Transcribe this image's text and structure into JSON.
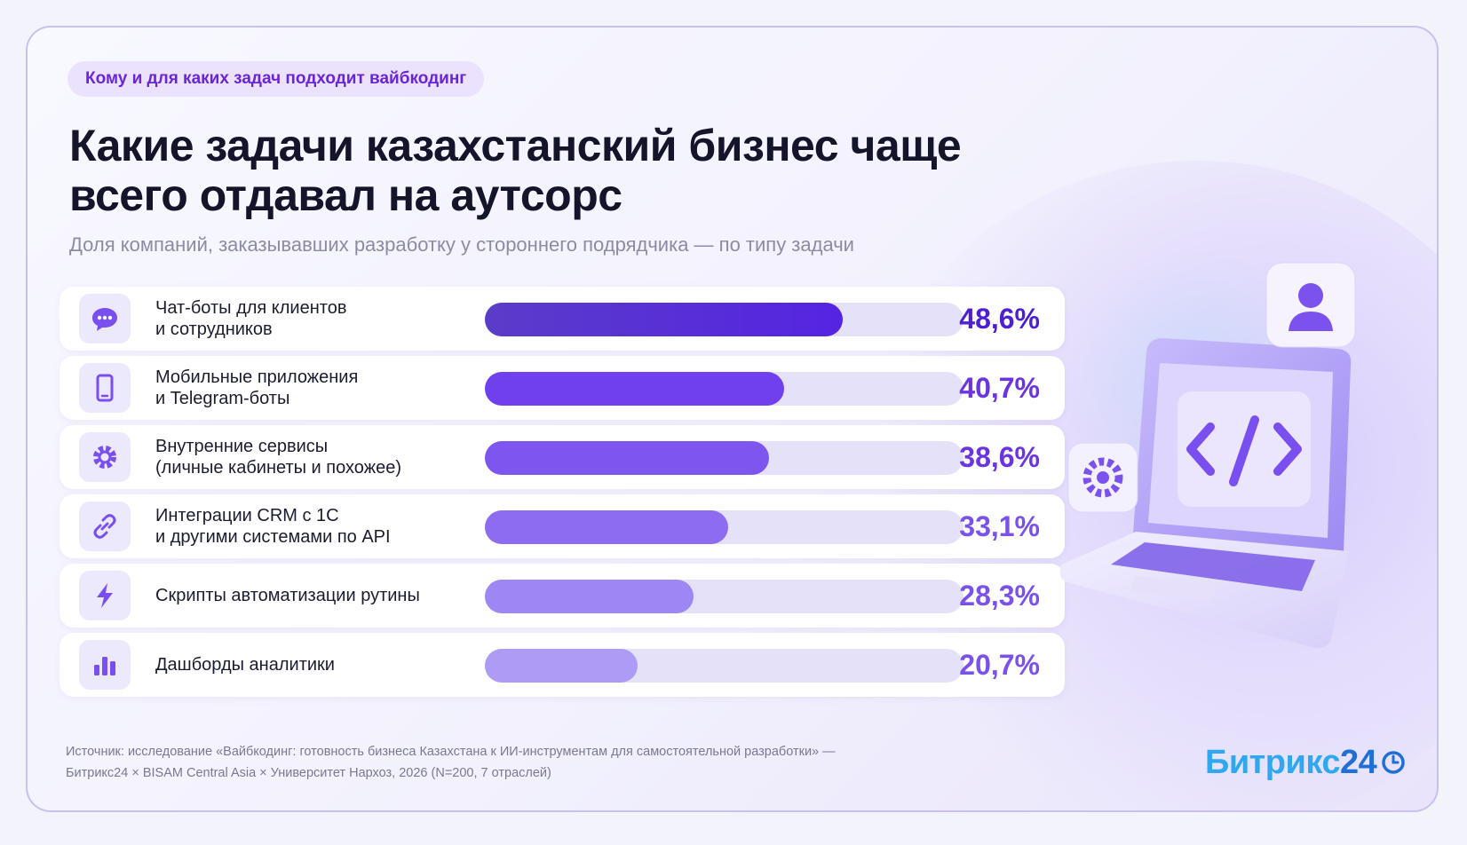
{
  "tag": "Кому и для каких задач подходит вайбкодинг",
  "title": "Какие задачи казахстанский бизнес чаще всего отдавал на аутсорс",
  "subtitle": "Доля компаний, заказывавших разработку у стороннего подрядчика — по типу задачи",
  "chart_data": {
    "type": "bar",
    "orientation": "horizontal",
    "title": "Какие задачи казахстанский бизнес чаще всего отдавал на аутсорс",
    "categories": [
      "Чат-боты для клиентов\nи сотрудников",
      "Мобильные приложения\nи Telegram-боты",
      "Внутренние сервисы\n(личные кабинеты и похожее)",
      "Интеграции CRM с 1С\nи другими системами по API",
      "Скрипты автоматизации рутины",
      "Дашборды аналитики"
    ],
    "values": [
      48.6,
      40.7,
      38.6,
      33.1,
      28.3,
      20.7
    ],
    "value_labels": [
      "48,6%",
      "40,7%",
      "38,6%",
      "33,1%",
      "28,3%",
      "20,7%"
    ],
    "icons": [
      "chat-bubble-icon",
      "smartphone-icon",
      "gear-icon",
      "link-icon",
      "lightning-icon",
      "bar-chart-icon"
    ],
    "xlim": [
      0,
      65
    ],
    "bar_colors": [
      "#5b2fd9",
      "#7140ee",
      "#7f55ef",
      "#8e6cf2",
      "#9f86f5",
      "#ae9bf6"
    ],
    "track_color": "#e5e1f8",
    "grid": false,
    "legend": "none"
  },
  "source": {
    "line1": "Источник: исследование «Вайбкодинг: готовность бизнеса Казахстана к ИИ-инструментам для самостоятельной разработки» —",
    "line2": "Битрикс24 × BISAM Central Asia × Университет Нархоз, 2026 (N=200, 7 отраслей)"
  },
  "logo": {
    "part1": "Битрикс",
    "part2": "24",
    "icon": "clock-icon"
  },
  "illustration": {
    "icons": [
      "laptop-icon",
      "code-brackets-icon",
      "gear-icon",
      "user-icon"
    ]
  },
  "colors": {
    "accent": "#6a34e0",
    "tag_bg": "#ebe3fd",
    "tag_text": "#6a25d8"
  }
}
